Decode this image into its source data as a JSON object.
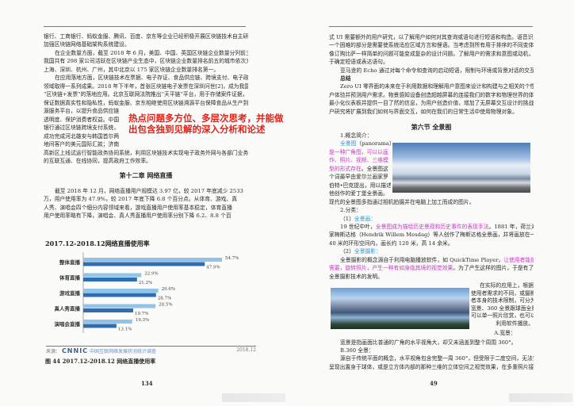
{
  "left_page": {
    "lines": [
      [
        [
          "银行、工商银行、蚂蚁金服、腾讯、百度、京东等企业已经积极开展区块链技术自主研发，",
          ""
        ]
      ],
      [
        [
          "加强区块链网络基础架构系统建设。",
          ""
        ]
      ],
      [
        [
          "在企业数量方面，截至 2018 年 6 月，美国、中国、英国区块链企业数量分列前三位，",
          "i"
        ]
      ],
      [
        [
          "我国共有 298 家公司活跃在区块链产业生态中，区块链企业数量排名前五的城市依次为北京、",
          ""
        ]
      ],
      [
        [
          "上海、深圳、杭州、广州，其中北京以 175 家区块链企业数量排名第一。",
          ""
        ]
      ],
      [
        [
          "在应用落地方面，区块链技术在票据、电子存证、食品供应链、跨境支付、电子政务等",
          "i"
        ]
      ],
      [
        [
          "领域取得一系列成果。2018 年下半年，首张区块链电子发票在深圳问世[2]，成为我国首个",
          ""
        ]
      ],
      [
        [
          "“区块链+发票”的落地应用。北京互联网法院推出“天平链”平台，用于存储案件证据，",
          ""
        ]
      ],
      [
        [
          "保证数据真实性和隐私性，蚂蚁金服、京东相继使用区块链溯源平台保障食品从生产到超市的溯",
          ""
        ]
      ],
      [
        [
          "源服务平台，以提升食品供应链",
          ""
        ]
      ],
      [
        [
          "透明度、保护消费者权益。中国",
          ""
        ]
      ],
      [
        [
          "银行通过区块链跨境支付系统，",
          ""
        ]
      ],
      [
        [
          "成功完成河北雄安与韩国首尔两",
          ""
        ]
      ],
      [
        [
          "地间客户的美元国际汇款；济南",
          ""
        ]
      ],
      [
        [
          "高新区上线试运行智能政务协同系统，利用区块链技术实现电子政务外网与各部门业务专网",
          ""
        ]
      ],
      [
        [
          "的互联互通、在线协同，提高政府工作效率。",
          ""
        ]
      ]
    ],
    "highlight": [
      "热点问题多方位、多层次思考，并能做",
      "出包含独到见解的深入分析和论述"
    ],
    "chapter_title": "第十二章  网络直播",
    "para": [
      [
        [
          "截至 2018 年 12 月，网络直播用户规模达 3.97 亿，较 2017 年底减少 2533",
          "i"
        ]
      ],
      [
        [
          "万，用户使用率为 47.9%，较 2017 年底下降 6.8 个百分点。从体育、游戏、真",
          ""
        ]
      ],
      [
        [
          "人秀、演唱会四个细分内容领域来看，游戏直播用户使用率基本稳定，体育直播",
          ""
        ]
      ],
      [
        [
          "用户使用率略有下降，演唱会、真人秀直播用户使用率分别下降 6.2、8.8 个百",
          ""
        ]
      ]
    ],
    "source_label": "来源：",
    "source_logo": "CNNIC",
    "source_org": "中国互联网络发展状况统计调查",
    "source_date": "2018.12",
    "figure_caption": "图 44   2017.12-2018.12 网络直播使用率",
    "page_number": "134"
  },
  "chart_data": {
    "type": "bar",
    "orientation": "horizontal",
    "title": "2017.12-2018.12网络直播使用率",
    "categories": [
      "整体直播",
      "体育直播",
      "游戏直播",
      "真人秀直播",
      "演唱会直播"
    ],
    "series": [
      {
        "name": "2017. 12",
        "values": [
          54.7,
          22.9,
          29.6,
          28.5,
          19.3
        ],
        "color": "#92c3ea"
      },
      {
        "name": "2018. 12",
        "values": [
          47.9,
          21.2,
          28.7,
          19.7,
          13.1
        ],
        "color": "#2f6db3"
      }
    ],
    "value_labels": [
      [
        "54.7%",
        "22.9%",
        "29.6%",
        "28.5%",
        "19.3%"
      ],
      [
        "47.9%",
        "21.2%",
        "28.7%",
        "19.7%",
        "13.1%"
      ]
    ],
    "xlim": [
      0,
      60
    ],
    "legend": "bottom",
    "grid": false
  },
  "right_page": {
    "lines": [
      [
        [
          "式 UI 需要额外的用户研究，以了解用户如何对其查询或语句进行短语和构造。语音识别的",
          ""
        ]
      ],
      [
        [
          "一个困难的部分是需要使系统适应区域方言和俚语。当考虑到所有用于排序的不同变体时，",
          ""
        ]
      ],
      [
        [
          "像订购比萨一样简单的问题可能变成复杂的设计问题。了解用户的需求和意图或动机，有助",
          ""
        ]
      ],
      [
        [
          "于确定短语或表达语句。",
          ""
        ]
      ],
      [
        [
          "亚马逊的 Echo 通过对每个命令和查询的启动短语，限制与环境或背景对话的交互。",
          "i"
        ]
      ],
      [
        [
          "总结",
          "ih"
        ]
      ],
      [
        [
          "Zero UI 零界面的未来在于利用数据和理解用户意图来设计和构建与之相关的个性化用",
          "i"
        ]
      ],
      [
        [
          "户体验并预测用户需求。物景感知设备创造超越屏幕的连接我们的数字和物理世界的体验，",
          ""
        ]
      ],
      [
        [
          "最小化仪表板并提供一目了然的信息，为用户创造价值，增加了无屏幕交互设计的挑战，用",
          ""
        ]
      ],
      [
        [
          "户研究将扩展到我们如何与界面交互，如何在我们的日常生活中使用物理对象。",
          ""
        ]
      ]
    ],
    "section_title": "第六节  全景图",
    "section_lines": [
      [
        [
          "1.概念简介：",
          "i"
        ]
      ],
      [
        [
          "全景图",
          "ib"
        ],
        [
          "（panorama）",
          ""
        ]
      ],
      [
        [
          "是一种广角图，可以以画",
          "m"
        ]
      ],
      [
        [
          "作、照片、视频、三维模",
          "m"
        ]
      ],
      [
        [
          "型的形式存在",
          "m"
        ],
        [
          "。全景图这",
          ""
        ]
      ],
      [
        [
          "个词最早由爱尔兰画家罗",
          ""
        ]
      ],
      [
        [
          "伯特•巴克提出，用以描述",
          ""
        ]
      ],
      [
        [
          "他创作的爱丁堡全景画。",
          ""
        ]
      ],
      [
        [
          "现代的全景图多指通过相机拍摄并在电脑上加工而成的图片。",
          ""
        ]
      ],
      [
        [
          "2.分类：",
          "i"
        ]
      ],
      [
        [
          "（1）",
          "i"
        ],
        [
          "全景画：",
          "b"
        ]
      ],
      [
        [
          "19 世纪中叶，",
          "i"
        ],
        [
          "全景图成为描绘历史景观和历史事件的表现手法",
          "m"
        ],
        [
          "。1881 年，荷兰海景画",
          ""
        ]
      ],
      [
        [
          "家梅斯达格（Hendrik Willem Mesdag）等人创作了梅斯达格全景画，并将画放在一个直径约",
          ""
        ]
      ],
      [
        [
          "40 米的环形空间内，画长约 120 米，高 14 余米。",
          ""
        ]
      ],
      [
        [
          "（2）",
          "i"
        ],
        [
          "全景摄影：",
          "b"
        ]
      ],
      [
        [
          "全景摄影的概念源自于利用电脑播放软件，如 QuickTime Player，",
          "i"
        ],
        [
          "让使用者能依本身的",
          "m"
        ]
      ],
      [
        [
          "需要，旋转照片，产生一种有如身临其境的视觉效果",
          "m"
        ],
        [
          "。为了产生这样的图片，于是有了各种",
          ""
        ]
      ],
      [
        [
          "全景摄影技术的发明。",
          ""
        ]
      ]
    ],
    "side_lines": [
      [
        [
          "在实际的应用上，根据",
          ""
        ]
      ],
      [
        [
          "使用者需求的不同，或摄影",
          ""
        ]
      ],
      [
        [
          "者本身的技术限制，可分为",
          ""
        ]
      ],
      [
        [
          "宽景、360 全景跟球面全景，",
          ""
        ]
      ],
      [
        [
          "可以单一照片欣赏，也可以",
          ""
        ]
      ],
      [
        [
          "利用软件播放。",
          ""
        ]
      ]
    ],
    "sub_a": "A.宽景：",
    "tail_lines": [
      [
        [
          "宽景是指画面比普通的广角的水平视角大，却又未涵盖到整个周围 360°。",
          "i"
        ]
      ],
      [
        [
          "B.360 全景：",
          "i"
        ]
      ],
      [
        [
          "源自于传统平面的概念，水平视角包含完整一周 360°，但受限于二度空间，无法完整",
          "i"
        ]
      ],
      [
        [
          "呈现出置身于球体，或是立方体内部的那种三维的立体空间之视觉效果，在多重照片接合时，",
          ""
        ]
      ]
    ],
    "page_number": "49"
  }
}
